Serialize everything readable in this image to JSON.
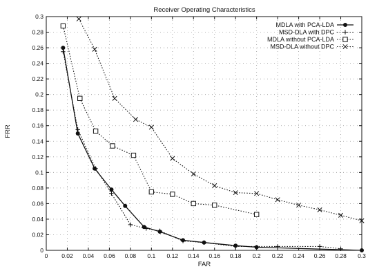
{
  "chart_data": {
    "type": "line",
    "title": "Receiver Operating Characteristics",
    "xlabel": "FAR",
    "ylabel": "FRR",
    "xlim": [
      0,
      0.3
    ],
    "ylim": [
      0,
      0.3
    ],
    "grid": true,
    "legend_position": "top-right",
    "x_ticks": [
      0,
      0.02,
      0.04,
      0.06,
      0.08,
      0.1,
      0.12,
      0.14,
      0.16,
      0.18,
      0.2,
      0.22,
      0.24,
      0.26,
      0.28,
      0.3
    ],
    "x_tick_labels": [
      "0",
      "0.02",
      "0.04",
      "0.06",
      "0.08",
      "0.1",
      "0.12",
      "0.14",
      "0.16",
      "0.18",
      "0.2",
      "0.22",
      "0.24",
      "0.26",
      "0.28",
      "0.3"
    ],
    "y_ticks": [
      0,
      0.02,
      0.04,
      0.06,
      0.08,
      0.1,
      0.12,
      0.14,
      0.16,
      0.18,
      0.2,
      0.22,
      0.24,
      0.26,
      0.28,
      0.3
    ],
    "y_tick_labels": [
      "0",
      "0.02",
      "0.04",
      "0.06",
      "0.08",
      "0.1",
      "0.12",
      "0.14",
      "0.16",
      "0.18",
      "0.2",
      "0.22",
      "0.24",
      "0.26",
      "0.28",
      "0.3"
    ],
    "series": [
      {
        "name": "MDLA with PCA-LDA",
        "marker": "filled-circle",
        "dash": "solid",
        "color": "#111111",
        "x": [
          0.016,
          0.03,
          0.046,
          0.062,
          0.075,
          0.093,
          0.108,
          0.13,
          0.15,
          0.18,
          0.2,
          0.3
        ],
        "y": [
          0.26,
          0.15,
          0.105,
          0.078,
          0.057,
          0.03,
          0.024,
          0.013,
          0.01,
          0.006,
          0.004,
          0.0
        ]
      },
      {
        "name": "MSD-DLA with DPC",
        "marker": "plus",
        "dash": "dotted",
        "color": "#111111",
        "x": [
          0.016,
          0.03,
          0.047,
          0.062,
          0.08,
          0.095,
          0.108,
          0.13,
          0.15,
          0.18,
          0.22,
          0.26,
          0.28
        ],
        "y": [
          0.255,
          0.155,
          0.105,
          0.073,
          0.033,
          0.028,
          0.025,
          0.012,
          0.01,
          0.005,
          0.005,
          0.005,
          0.002
        ]
      },
      {
        "name": "MDLA without PCA-LDA",
        "marker": "square",
        "dash": "dotted",
        "color": "#111111",
        "x": [
          0.016,
          0.032,
          0.047,
          0.063,
          0.083,
          0.1,
          0.12,
          0.14,
          0.16,
          0.2
        ],
        "y": [
          0.288,
          0.195,
          0.153,
          0.134,
          0.122,
          0.075,
          0.072,
          0.06,
          0.058,
          0.046
        ]
      },
      {
        "name": "MSD-DLA without DPC",
        "marker": "cross",
        "dash": "dotted",
        "color": "#111111",
        "x": [
          0.031,
          0.046,
          0.065,
          0.085,
          0.1,
          0.12,
          0.14,
          0.16,
          0.18,
          0.2,
          0.22,
          0.24,
          0.26,
          0.28,
          0.3
        ],
        "y": [
          0.297,
          0.258,
          0.195,
          0.168,
          0.158,
          0.118,
          0.098,
          0.083,
          0.074,
          0.073,
          0.065,
          0.058,
          0.052,
          0.045,
          0.038
        ]
      }
    ]
  }
}
